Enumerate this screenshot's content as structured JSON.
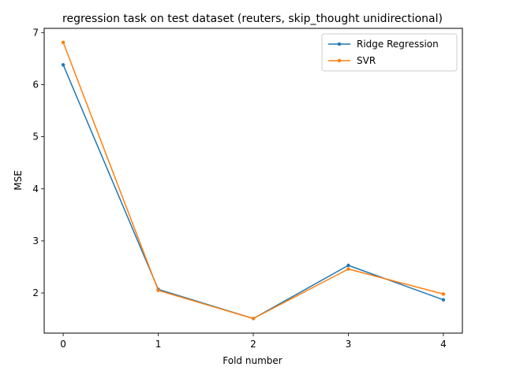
{
  "chart_data": {
    "type": "line",
    "title": "regression task on test dataset (reuters, skip_thought unidirectional)",
    "xlabel": "Fold number",
    "ylabel": "MSE",
    "x": [
      0,
      1,
      2,
      3,
      4
    ],
    "xticks": [
      "0",
      "1",
      "2",
      "3",
      "4"
    ],
    "xlim": [
      -0.2,
      4.2
    ],
    "yticks": [
      "2",
      "3",
      "4",
      "5",
      "6",
      "7"
    ],
    "ylim": [
      1.23,
      7.08
    ],
    "grid": false,
    "legend_position": "top-right",
    "series": [
      {
        "name": "Ridge Regression",
        "color": "#1f77b4",
        "values": [
          6.38,
          2.07,
          1.51,
          2.53,
          1.87
        ]
      },
      {
        "name": "SVR",
        "color": "#ff7f0e",
        "values": [
          6.81,
          2.05,
          1.51,
          2.46,
          1.98
        ]
      }
    ]
  }
}
